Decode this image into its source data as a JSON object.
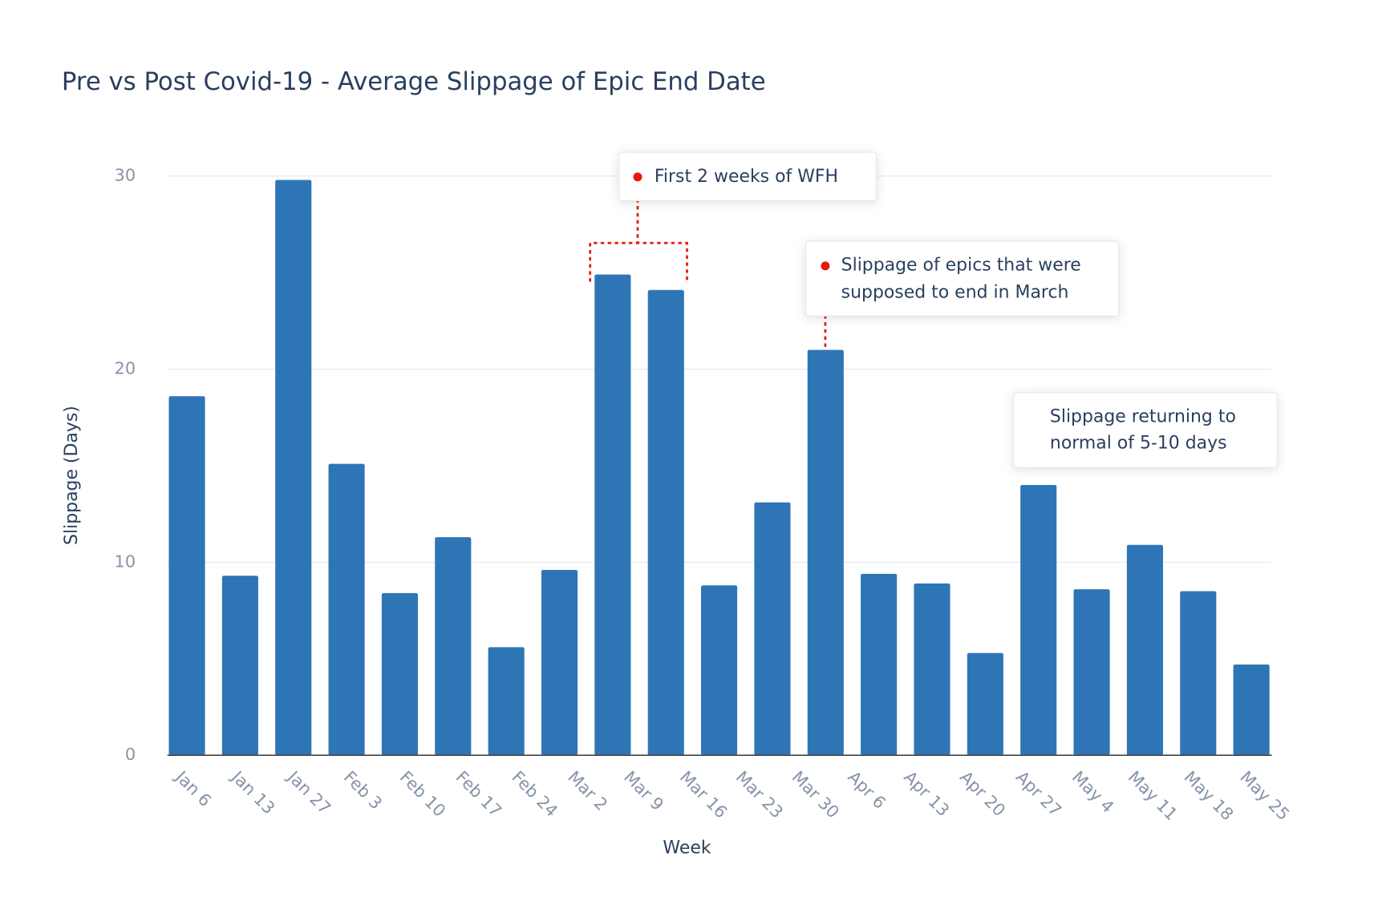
{
  "chart_data": {
    "type": "bar",
    "title": "Pre vs Post Covid-19 - Average Slippage of Epic End Date",
    "x_label": "Week",
    "y_label": "Slippage (Days)",
    "categories": [
      "Jan 6",
      "Jan 13",
      null,
      "Jan 27",
      "Feb 3",
      "Feb 10",
      "Feb 17",
      "Feb 24",
      "Mar 2",
      "Mar 9",
      "Mar 16",
      "Mar 23",
      "Mar 30",
      "Apr 6",
      "Apr 13",
      "Apr 20",
      "Apr 27",
      "May 4",
      "May 11",
      "May 18",
      "May 25"
    ],
    "values": [
      18.6,
      9.3,
      29.8,
      15.1,
      8.4,
      11.3,
      5.6,
      9.6,
      24.9,
      24.1,
      8.8,
      13.1,
      21.0,
      9.4,
      8.9,
      5.3,
      14.0,
      8.6,
      10.9,
      8.5,
      4.7
    ],
    "color": "#2e75b6",
    "ylim": [
      0,
      30
    ],
    "yticks": [
      0,
      10,
      20,
      30
    ],
    "grid": true,
    "annotations": [
      {
        "lines": [
          "First 2 weeks of WFH"
        ]
      },
      {
        "lines": [
          "Slippage of epics that were",
          "supposed to end in March"
        ]
      },
      {
        "lines": [
          "Slippage returning to",
          "normal of 5-10 days"
        ]
      }
    ]
  }
}
